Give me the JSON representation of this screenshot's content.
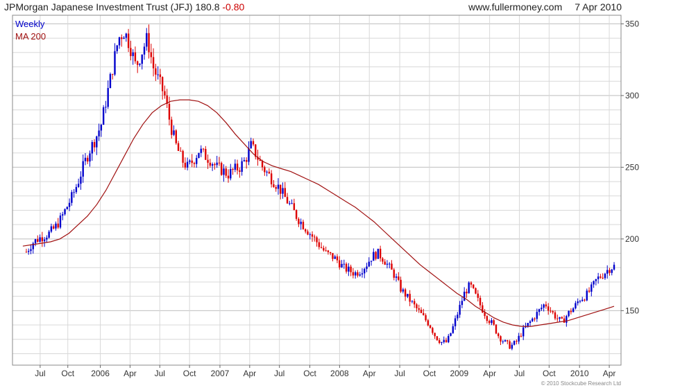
{
  "header": {
    "title": "JPMorgan Japanese Investment Trust (JFJ)",
    "last": "180.8",
    "change": "-0.80",
    "site": "www.fullermoney.com",
    "date": "7 Apr 2010"
  },
  "copyright": "© 2010 Stockcube Research Ltd",
  "colors": {
    "up": "#0000cc",
    "down": "#dd0000",
    "ma": "#a01010",
    "grid": "#d8d8d8"
  },
  "chart_data": {
    "type": "line",
    "chart_style": "weekly-price-bars-with-moving-average",
    "title": "JPMorgan Japanese Investment Trust (JFJ)",
    "xlabel": "",
    "ylabel": "",
    "ylim": [
      112,
      356
    ],
    "yticks": [
      150,
      200,
      250,
      300,
      350
    ],
    "y_axis_position": "right",
    "grid": true,
    "legend_position": "top-left",
    "x_ticks": [
      {
        "label": "Jul",
        "week": 0
      },
      {
        "label": "Oct",
        "week": 4
      },
      {
        "label": "2006",
        "week": 8.7
      },
      {
        "label": "Apr",
        "week": 13
      },
      {
        "label": "Jul",
        "week": 17.3
      },
      {
        "label": "Oct",
        "week": 21.6
      },
      {
        "label": "2007",
        "week": 26
      },
      {
        "label": "Apr",
        "week": 30.3
      },
      {
        "label": "Jul",
        "week": 34.6
      },
      {
        "label": "Oct",
        "week": 39
      },
      {
        "label": "2008",
        "week": 43.3
      },
      {
        "label": "Apr",
        "week": 47.6
      },
      {
        "label": "Jul",
        "week": 52
      },
      {
        "label": "Oct",
        "week": 56.3
      },
      {
        "label": "2009",
        "week": 60.6
      },
      {
        "label": "Apr",
        "week": 65
      },
      {
        "label": "Jul",
        "week": 69.3
      },
      {
        "label": "Oct",
        "week": 73.6
      },
      {
        "label": "2010",
        "week": 78
      },
      {
        "label": "Apr",
        "week": 82.3
      }
    ],
    "series": [
      {
        "name": "Weekly",
        "kind": "price",
        "close": [
          191,
          197,
          200,
          202,
          204,
          208,
          214,
          222,
          230,
          240,
          252,
          262,
          270,
          280,
          300,
          320,
          340,
          345,
          335,
          320,
          330,
          340,
          320,
          310,
          300,
          280,
          265,
          255,
          250,
          255,
          262,
          258,
          255,
          250,
          248,
          245,
          248,
          250,
          255,
          265,
          258,
          250,
          245,
          240,
          235,
          228,
          222,
          215,
          210,
          205,
          200,
          195,
          190,
          188,
          185,
          180,
          178,
          176,
          178,
          182,
          188,
          190,
          186,
          180,
          174,
          165,
          160,
          155,
          150,
          145,
          140,
          132,
          128,
          128,
          138,
          150,
          162,
          168,
          160,
          152,
          145,
          140,
          132,
          128,
          125,
          128,
          135,
          140,
          145,
          150,
          155,
          150,
          145,
          142,
          148,
          152,
          158,
          160,
          165,
          172,
          175,
          179,
          181
        ]
      },
      {
        "name": "MA 200",
        "kind": "moving-average",
        "values": [
          195,
          196,
          197,
          198,
          200,
          204,
          210,
          216,
          224,
          234,
          246,
          258,
          270,
          280,
          288,
          293,
          296,
          297,
          297,
          296,
          293,
          288,
          281,
          273,
          266,
          259,
          254,
          251,
          249,
          247,
          244,
          241,
          238,
          234,
          230,
          226,
          222,
          217,
          212,
          206,
          200,
          194,
          188,
          182,
          177,
          172,
          167,
          162,
          158,
          153,
          149,
          145,
          142,
          140,
          139,
          139,
          140,
          141,
          142,
          143,
          145,
          147,
          149,
          151,
          153
        ]
      }
    ]
  }
}
